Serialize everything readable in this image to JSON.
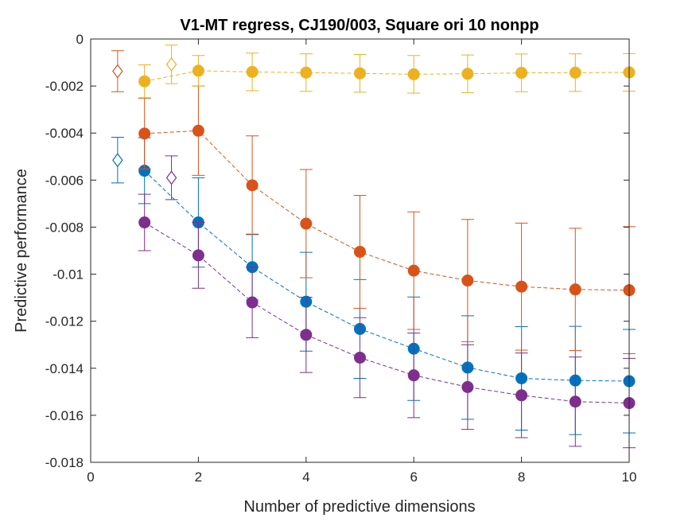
{
  "chart_data": {
    "type": "line",
    "title": "V1-MT regress, CJ190/003, Square ori 10 nonpp",
    "xlabel": "Number of predictive dimensions",
    "ylabel": "Predictive performance",
    "xlim": [
      0,
      10
    ],
    "ylim": [
      -0.018,
      0
    ],
    "xticks": [
      0,
      2,
      4,
      6,
      8,
      10
    ],
    "xtick_labels": [
      "0",
      "2",
      "4",
      "6",
      "8",
      "10"
    ],
    "yticks": [
      0,
      -0.002,
      -0.004,
      -0.006,
      -0.008,
      -0.01,
      -0.012,
      -0.014,
      -0.016,
      -0.018
    ],
    "ytick_labels": [
      "0",
      "-0.002",
      "-0.004",
      "-0.006",
      "-0.008",
      "-0.01",
      "-0.012",
      "-0.014",
      "-0.016",
      "-0.018"
    ],
    "grid": false,
    "x": [
      1,
      2,
      3,
      4,
      5,
      6,
      7,
      8,
      9,
      10
    ],
    "series": [
      {
        "color": "#0072BD",
        "values": [
          -0.0056,
          -0.0078,
          -0.0097,
          -0.01117,
          -0.01233,
          -0.01317,
          -0.01397,
          -0.01443,
          -0.01452,
          -0.01455
        ],
        "error": [
          0.0014,
          0.0019,
          0.0014,
          0.0021,
          0.0021,
          0.0022,
          0.0022,
          0.0022,
          0.0023,
          0.0022
        ],
        "reference": {
          "x": 0.5,
          "value": -0.00515,
          "error": 0.00097
        }
      },
      {
        "color": "#D95319",
        "values": [
          -0.00402,
          -0.0039,
          -0.00622,
          -0.00785,
          -0.00905,
          -0.00985,
          -0.01027,
          -0.01053,
          -0.01065,
          -0.01068
        ],
        "error": [
          0.0015,
          0.0019,
          0.0021,
          0.0023,
          0.0024,
          0.0025,
          0.0026,
          0.0027,
          0.0026,
          0.0027
        ],
        "reference": {
          "x": 0.5,
          "value": -0.00137,
          "error": 0.00087
        }
      },
      {
        "color": "#EDB120",
        "values": [
          -0.0018,
          -0.00135,
          -0.0014,
          -0.00143,
          -0.00146,
          -0.0015,
          -0.00148,
          -0.00144,
          -0.00143,
          -0.00142
        ],
        "error": [
          0.0007,
          0.00065,
          0.0008,
          0.0008,
          0.0008,
          0.0008,
          0.0008,
          0.0008,
          0.0008,
          0.0008
        ],
        "reference": {
          "x": 1.5,
          "value": -0.00108,
          "error": 0.00082
        }
      },
      {
        "color": "#7E2F8E",
        "values": [
          -0.0078,
          -0.0092,
          -0.0112,
          -0.01258,
          -0.01355,
          -0.0143,
          -0.0148,
          -0.01515,
          -0.01542,
          -0.01548
        ],
        "error": [
          0.0012,
          0.0014,
          0.0015,
          0.0016,
          0.0017,
          0.0018,
          0.0018,
          0.0018,
          0.0019,
          0.0019
        ],
        "reference": {
          "x": 1.5,
          "value": -0.0059,
          "error": 0.00093
        }
      }
    ]
  }
}
